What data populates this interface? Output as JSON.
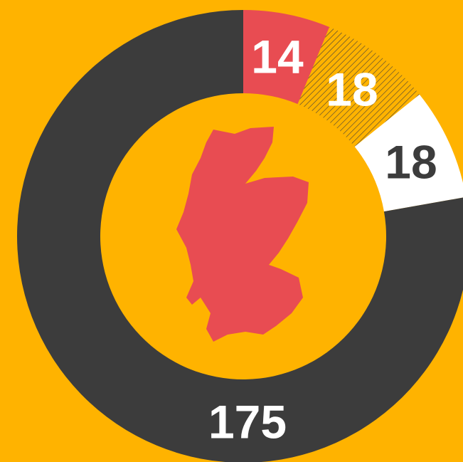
{
  "chart_data": {
    "type": "donut",
    "values": [
      14,
      18,
      18,
      175
    ],
    "colors": [
      "#e84c52",
      "#ffb300",
      "#ffffff",
      "#3c3c3c"
    ],
    "hatch": [
      false,
      true,
      false,
      false
    ],
    "label_colors": [
      "#ffffff",
      "#ffffff",
      "#3c3c3c",
      "#ffffff"
    ],
    "background": "#ffb300"
  }
}
